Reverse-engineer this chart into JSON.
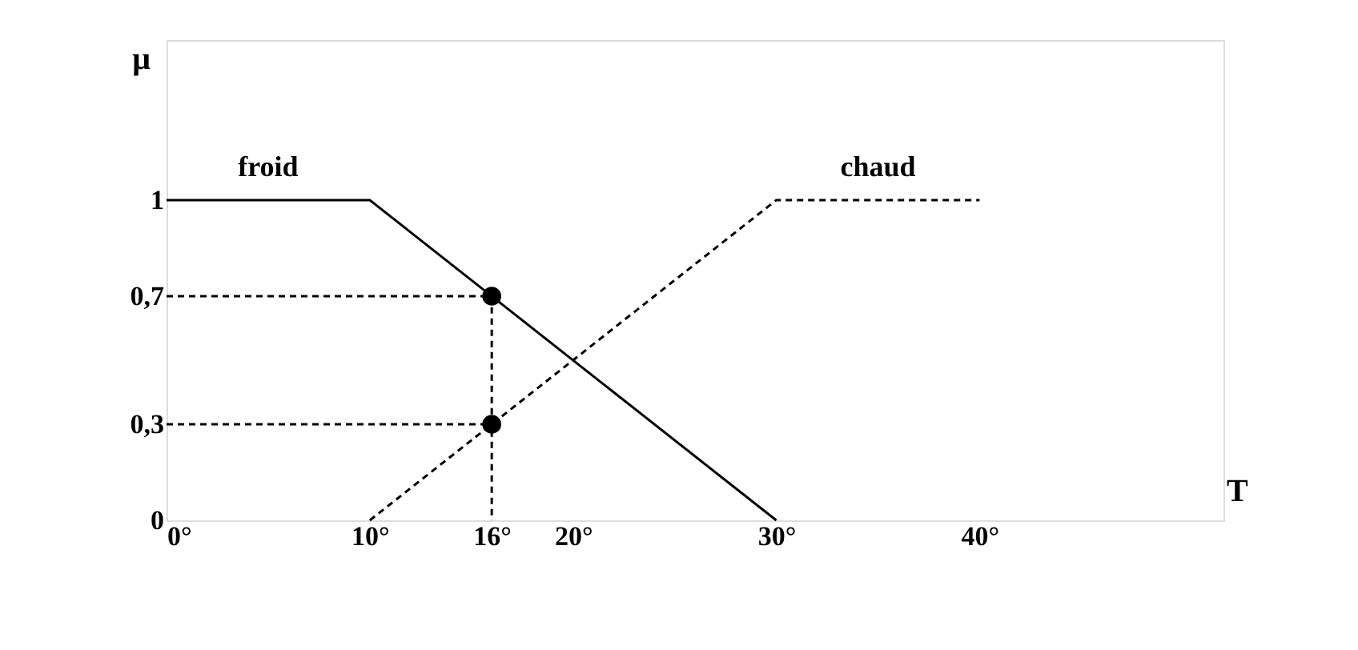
{
  "chart_data": {
    "type": "line",
    "xlabel": "T",
    "ylabel": "μ",
    "xlim": [
      0,
      52
    ],
    "ylim": [
      0,
      1.5
    ],
    "xticks": [
      {
        "value": 0,
        "label": "0°"
      },
      {
        "value": 10,
        "label": "10°"
      },
      {
        "value": 16,
        "label": "16°"
      },
      {
        "value": 20,
        "label": "20°"
      },
      {
        "value": 30,
        "label": "30°"
      },
      {
        "value": 40,
        "label": "40°"
      }
    ],
    "yticks": [
      0,
      {
        "value": 0.3,
        "label": "0,3"
      },
      {
        "value": 0.7,
        "label": "0,7"
      },
      1
    ],
    "grid": false,
    "legend": false,
    "series": [
      {
        "name": "froid",
        "line_style": "solid",
        "color": "#000000",
        "x": [
          0,
          10,
          30
        ],
        "values": [
          1,
          1,
          0
        ]
      },
      {
        "name": "chaud",
        "line_style": "dashed",
        "color": "#000000",
        "x": [
          10,
          30,
          40
        ],
        "values": [
          0,
          1,
          1
        ]
      },
      {
        "line_style": "dashed",
        "color": "#000000",
        "x": [
          0,
          16,
          16
        ],
        "values": [
          0.7,
          0.7,
          0
        ]
      },
      {
        "line_style": "dashed",
        "color": "#000000",
        "x": [
          0,
          16
        ],
        "values": [
          0.3,
          0.3
        ]
      },
      {
        "type": "scatter",
        "marker": "circle",
        "color": "#000000",
        "x": [
          16,
          16
        ],
        "values": [
          0.7,
          0.3
        ]
      }
    ]
  }
}
